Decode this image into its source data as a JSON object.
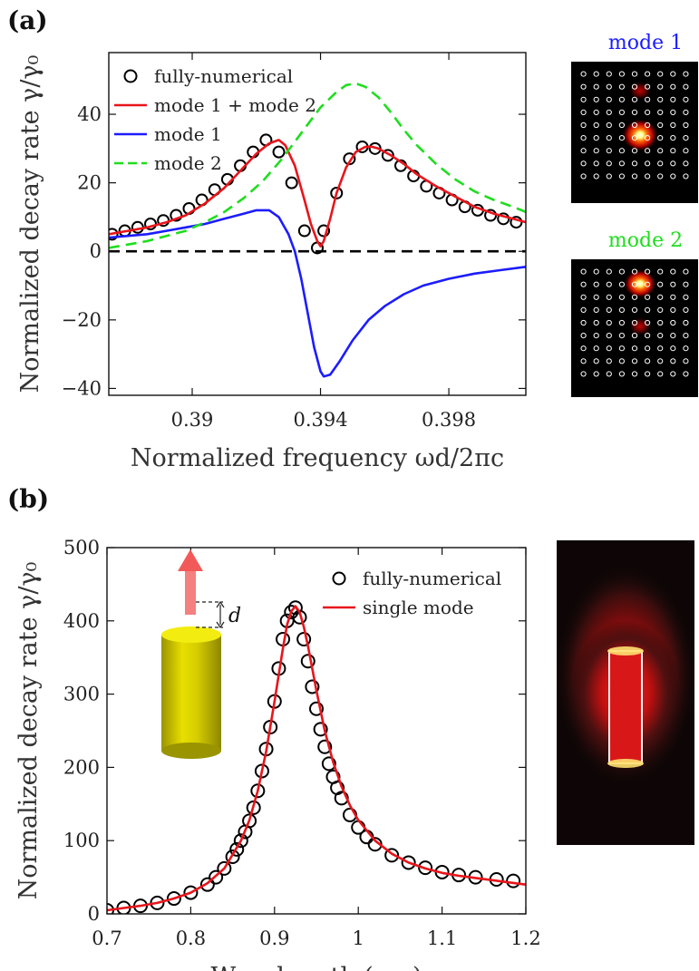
{
  "panels": {
    "a_label": "(a)",
    "b_label": "(b)"
  },
  "chart_data": [
    {
      "type": "line",
      "panel": "(a)",
      "xlabel": "Normalized frequency ωd/2πc",
      "ylabel": "Normalized decay rate γ/γ₀",
      "xlim": [
        0.3874,
        0.4004
      ],
      "ylim": [
        -42,
        58
      ],
      "xticks": [
        0.39,
        0.394,
        0.398
      ],
      "xtick_labels": [
        "0.39",
        "0.394",
        "0.398"
      ],
      "yticks": [
        -40,
        -20,
        0,
        20,
        40
      ],
      "ytick_labels": [
        "−40",
        "−20",
        "0",
        "20",
        "40"
      ],
      "legend_position": "top-left",
      "series": [
        {
          "name": "fully-numerical",
          "style": "open-circles",
          "color": "#000000",
          "x": [
            0.3875,
            0.3879,
            0.3883,
            0.3887,
            0.3891,
            0.3895,
            0.3899,
            0.3903,
            0.3907,
            0.3911,
            0.3915,
            0.3919,
            0.3923,
            0.3927,
            0.3931,
            0.3935,
            0.3939,
            0.3941,
            0.3945,
            0.3949,
            0.3953,
            0.3957,
            0.3961,
            0.3965,
            0.3969,
            0.3973,
            0.3977,
            0.3981,
            0.3985,
            0.3989,
            0.3993,
            0.3997,
            0.4001
          ],
          "y": [
            5.0,
            6.0,
            7.0,
            8.0,
            9.0,
            10.5,
            12.5,
            15.0,
            18.0,
            21.0,
            25.0,
            29.0,
            32.5,
            29.0,
            20.0,
            6.0,
            1.0,
            6.0,
            17.0,
            27.0,
            30.5,
            30.0,
            28.0,
            25.0,
            22.0,
            19.0,
            17.0,
            15.0,
            13.0,
            12.0,
            10.5,
            9.5,
            8.5
          ]
        },
        {
          "name": "mode 1 + mode 2",
          "style": "solid",
          "color": "#e8151b",
          "x": [
            0.3874,
            0.388,
            0.3886,
            0.3892,
            0.3898,
            0.3904,
            0.391,
            0.3916,
            0.392,
            0.3924,
            0.3927,
            0.3929,
            0.3932,
            0.3935,
            0.3937,
            0.3939,
            0.394,
            0.3941,
            0.3943,
            0.3945,
            0.3948,
            0.3951,
            0.3954,
            0.3956,
            0.3958,
            0.3962,
            0.3966,
            0.397,
            0.3976,
            0.3982,
            0.3988,
            0.3994,
            0.4,
            0.4004
          ],
          "y": [
            5.0,
            6.0,
            7.0,
            8.5,
            10.5,
            14.0,
            18.5,
            24.5,
            28.5,
            31.5,
            32.5,
            31.0,
            25.0,
            15.0,
            8.0,
            3.0,
            1.5,
            3.0,
            9.5,
            17.0,
            24.5,
            29.0,
            30.5,
            30.5,
            30.0,
            28.0,
            25.5,
            22.5,
            19.0,
            16.0,
            13.0,
            11.0,
            9.5,
            8.5
          ]
        },
        {
          "name": "mode 1",
          "style": "solid",
          "color": "#1c1cff",
          "x": [
            0.3874,
            0.388,
            0.3886,
            0.3892,
            0.3898,
            0.3904,
            0.391,
            0.3916,
            0.392,
            0.3924,
            0.3927,
            0.393,
            0.3932,
            0.3934,
            0.3936,
            0.3938,
            0.394,
            0.3941,
            0.3943,
            0.3946,
            0.395,
            0.3955,
            0.396,
            0.3966,
            0.3972,
            0.398,
            0.3988,
            0.3996,
            0.4004
          ],
          "y": [
            4.0,
            4.5,
            5.0,
            6.0,
            7.0,
            8.0,
            9.5,
            11.0,
            12.0,
            12.0,
            10.0,
            5.0,
            0.0,
            -8.0,
            -18.0,
            -28.0,
            -35.0,
            -36.5,
            -36.0,
            -32.0,
            -26.0,
            -20.0,
            -16.0,
            -12.5,
            -10.0,
            -8.0,
            -6.5,
            -5.5,
            -4.5
          ]
        },
        {
          "name": "mode 2",
          "style": "dashed",
          "color": "#1fdd1f",
          "x": [
            0.3874,
            0.388,
            0.3886,
            0.3892,
            0.3898,
            0.3904,
            0.391,
            0.3916,
            0.3922,
            0.3928,
            0.3934,
            0.394,
            0.3945,
            0.3948,
            0.3951,
            0.3954,
            0.3958,
            0.3962,
            0.3966,
            0.397,
            0.3976,
            0.3982,
            0.3988,
            0.3994,
            0.4,
            0.4004
          ],
          "y": [
            1.0,
            2.0,
            3.0,
            4.5,
            6.0,
            8.5,
            11.5,
            15.5,
            20.5,
            27.0,
            34.5,
            42.0,
            46.5,
            48.5,
            49.0,
            48.0,
            45.0,
            40.5,
            35.5,
            31.0,
            25.5,
            21.0,
            17.5,
            15.0,
            13.0,
            11.5
          ]
        },
        {
          "name": "",
          "style": "dashed-zero-line",
          "color": "#000000",
          "x": [
            0.3874,
            0.4004
          ],
          "y": [
            0,
            0
          ]
        }
      ],
      "insets": [
        {
          "label": "mode 1",
          "label_color": "#1c1cff"
        },
        {
          "label": "mode 2",
          "label_color": "#1fdd1f"
        }
      ]
    },
    {
      "type": "line",
      "panel": "(b)",
      "xlabel": "Wavelength (μm)",
      "ylabel": "Normalized decay rate γ/γ₀",
      "xlim": [
        0.7,
        1.2
      ],
      "ylim": [
        0,
        500
      ],
      "xticks": [
        0.7,
        0.8,
        0.9,
        1.0,
        1.1,
        1.2
      ],
      "xtick_labels": [
        "0.7",
        "0.8",
        "0.9",
        "1",
        "1.1",
        "1.2"
      ],
      "yticks": [
        0,
        100,
        200,
        300,
        400,
        500
      ],
      "ytick_labels": [
        "0",
        "100",
        "200",
        "300",
        "400",
        "500"
      ],
      "legend_position": "top-right",
      "inset_annotation": "d",
      "series": [
        {
          "name": "fully-numerical",
          "style": "open-circles",
          "color": "#000000",
          "x": [
            0.7,
            0.72,
            0.74,
            0.76,
            0.78,
            0.8,
            0.82,
            0.83,
            0.84,
            0.85,
            0.855,
            0.86,
            0.865,
            0.87,
            0.875,
            0.88,
            0.885,
            0.89,
            0.895,
            0.9,
            0.905,
            0.91,
            0.915,
            0.92,
            0.925,
            0.93,
            0.935,
            0.94,
            0.945,
            0.95,
            0.955,
            0.96,
            0.965,
            0.97,
            0.975,
            0.98,
            0.99,
            1.0,
            1.01,
            1.02,
            1.04,
            1.06,
            1.08,
            1.1,
            1.12,
            1.14,
            1.165,
            1.185
          ],
          "y": [
            5,
            8,
            11,
            15,
            21,
            29,
            40,
            50,
            62,
            78,
            88,
            100,
            112,
            127,
            145,
            168,
            195,
            225,
            255,
            290,
            335,
            375,
            400,
            412,
            418,
            405,
            375,
            345,
            310,
            280,
            252,
            228,
            205,
            187,
            172,
            158,
            135,
            118,
            105,
            95,
            80,
            70,
            63,
            57,
            53,
            50,
            47,
            45
          ]
        },
        {
          "name": "single mode",
          "style": "solid",
          "color": "#e8151b",
          "x": [
            0.7,
            0.72,
            0.74,
            0.76,
            0.78,
            0.8,
            0.82,
            0.84,
            0.86,
            0.87,
            0.88,
            0.89,
            0.9,
            0.91,
            0.915,
            0.92,
            0.925,
            0.93,
            0.935,
            0.94,
            0.95,
            0.96,
            0.97,
            0.98,
            0.99,
            1.0,
            1.02,
            1.04,
            1.06,
            1.08,
            1.1,
            1.12,
            1.14,
            1.16,
            1.18,
            1.2
          ],
          "y": [
            5,
            8,
            11,
            15,
            21,
            29,
            42,
            62,
            100,
            128,
            168,
            222,
            290,
            362,
            395,
            413,
            420,
            412,
            392,
            365,
            305,
            250,
            207,
            174,
            148,
            128,
            100,
            82,
            70,
            62,
            56,
            52,
            49,
            46,
            43,
            40
          ]
        }
      ]
    }
  ]
}
